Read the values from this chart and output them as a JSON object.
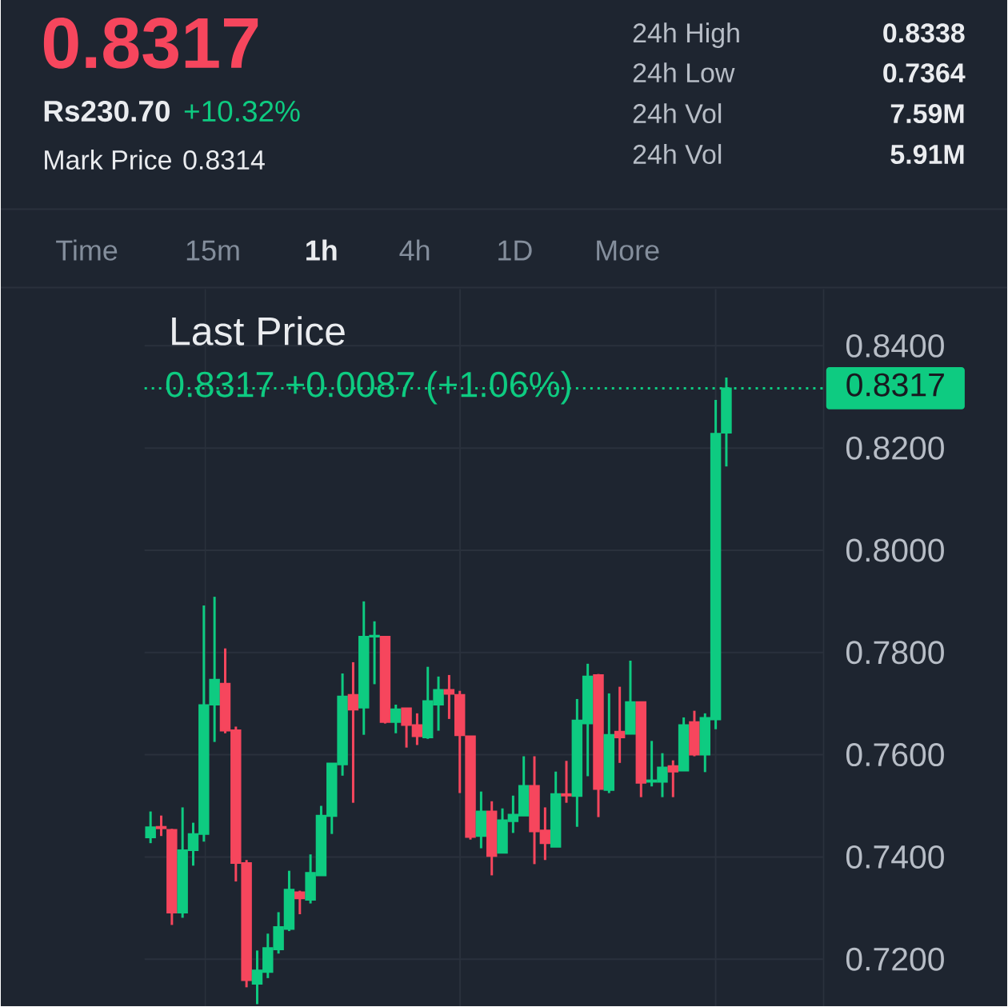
{
  "chart_data": {
    "type": "candlestick",
    "title": "Last Price",
    "subtitle": "0.8317 +0.0087 (+1.06%)",
    "annotations": [
      "0.8317",
      "Rs230.70",
      "+10.32%",
      "Mark Price",
      "0.8314",
      "24h High",
      "0.8338",
      "24h Low",
      "0.7364",
      "24h Vol",
      "7.59M",
      "24h Vol",
      "5.91M",
      "Time",
      "15m",
      "1h",
      "4h",
      "1D",
      "More"
    ],
    "categories": [
      null,
      null,
      null,
      null,
      null,
      null,
      null,
      null,
      null,
      null,
      null,
      null,
      null,
      null,
      null,
      null,
      null,
      null,
      null,
      null,
      null,
      null,
      null,
      null,
      null,
      null,
      null,
      null,
      null,
      null,
      null,
      null,
      null,
      null,
      null,
      null,
      null,
      null,
      null,
      null,
      null,
      null,
      null,
      null,
      null,
      null,
      null,
      null,
      null,
      null,
      null,
      null,
      null,
      null,
      null
    ],
    "ohlc": [
      [
        0.7438,
        0.7489,
        0.7427,
        0.7458
      ],
      [
        0.7459,
        0.7481,
        0.7441,
        0.7456
      ],
      [
        0.7453,
        0.7455,
        0.7267,
        0.7291
      ],
      [
        0.7291,
        0.7497,
        0.7281,
        0.7413
      ],
      [
        0.7413,
        0.7467,
        0.7383,
        0.7445
      ],
      [
        0.7445,
        0.7892,
        0.743,
        0.7697
      ],
      [
        0.7698,
        0.7909,
        0.7625,
        0.7747
      ],
      [
        0.7739,
        0.7808,
        0.7642,
        0.7647
      ],
      [
        0.7648,
        0.7655,
        0.7352,
        0.7388
      ],
      [
        0.7388,
        0.7394,
        0.7145,
        0.7159
      ],
      [
        0.7152,
        0.7217,
        0.7112,
        0.7178
      ],
      [
        0.7175,
        0.725,
        0.7163,
        0.7222
      ],
      [
        0.7219,
        0.7292,
        0.7211,
        0.7263
      ],
      [
        0.7259,
        0.7373,
        0.7255,
        0.7336
      ],
      [
        0.7331,
        0.7334,
        0.7288,
        0.7319
      ],
      [
        0.7316,
        0.7405,
        0.7309,
        0.7369
      ],
      [
        0.7364,
        0.75,
        0.7364,
        0.7481
      ],
      [
        0.748,
        0.7583,
        0.7445,
        0.7583
      ],
      [
        0.7581,
        0.7759,
        0.7559,
        0.7714
      ],
      [
        0.7717,
        0.7781,
        0.7506,
        0.7688
      ],
      [
        0.7692,
        0.79,
        0.7639,
        0.7831
      ],
      [
        0.7831,
        0.7861,
        0.7738,
        0.7833
      ],
      [
        0.7831,
        0.7831,
        0.7661,
        0.7664
      ],
      [
        0.7664,
        0.7698,
        0.7642,
        0.7689
      ],
      [
        0.7691,
        0.7691,
        0.7614,
        0.7658
      ],
      [
        0.7658,
        0.7681,
        0.7619,
        0.7636
      ],
      [
        0.7634,
        0.7772,
        0.7631,
        0.7705
      ],
      [
        0.7698,
        0.7753,
        0.7647,
        0.7727
      ],
      [
        0.7727,
        0.7756,
        0.767,
        0.7719
      ],
      [
        0.7717,
        0.7725,
        0.7525,
        0.7638
      ],
      [
        0.7636,
        0.7636,
        0.7434,
        0.7439
      ],
      [
        0.7441,
        0.7528,
        0.7417,
        0.7489
      ],
      [
        0.7489,
        0.7509,
        0.7364,
        0.7402
      ],
      [
        0.7408,
        0.7495,
        0.7408,
        0.7472
      ],
      [
        0.747,
        0.752,
        0.7447,
        0.7483
      ],
      [
        0.7481,
        0.7597,
        0.7481,
        0.7539
      ],
      [
        0.7539,
        0.7597,
        0.7386,
        0.745
      ],
      [
        0.7452,
        0.7497,
        0.7394,
        0.7427
      ],
      [
        0.742,
        0.7567,
        0.742,
        0.7523
      ],
      [
        0.7523,
        0.7588,
        0.7506,
        0.752
      ],
      [
        0.7519,
        0.7709,
        0.7459,
        0.7667
      ],
      [
        0.7661,
        0.7778,
        0.7558,
        0.7753
      ],
      [
        0.7756,
        0.7758,
        0.7478,
        0.7533
      ],
      [
        0.7531,
        0.772,
        0.7525,
        0.7639
      ],
      [
        0.7645,
        0.7733,
        0.7584,
        0.7634
      ],
      [
        0.7641,
        0.7784,
        0.7641,
        0.7703
      ],
      [
        0.7703,
        0.7703,
        0.7517,
        0.7545
      ],
      [
        0.7547,
        0.7627,
        0.7538,
        0.755
      ],
      [
        0.7547,
        0.7603,
        0.7517,
        0.7575
      ],
      [
        0.7578,
        0.7589,
        0.7517,
        0.7567
      ],
      [
        0.7569,
        0.7673,
        0.7569,
        0.7658
      ],
      [
        0.7664,
        0.7686,
        0.7597,
        0.76
      ],
      [
        0.76,
        0.7681,
        0.7566,
        0.7672
      ],
      [
        0.7669,
        0.8294,
        0.765,
        0.8228
      ],
      [
        0.823,
        0.8338,
        0.8164,
        0.8317
      ]
    ],
    "colors": [
      "#0ecb81",
      "#f6465d",
      "#f6465d",
      "#0ecb81",
      "#0ecb81",
      "#0ecb81",
      "#0ecb81",
      "#f6465d",
      "#f6465d",
      "#f6465d",
      "#0ecb81",
      "#0ecb81",
      "#0ecb81",
      "#0ecb81",
      "#f6465d",
      "#0ecb81",
      "#0ecb81",
      "#0ecb81",
      "#0ecb81",
      "#f6465d",
      "#0ecb81",
      "#0ecb81",
      "#f6465d",
      "#0ecb81",
      "#f6465d",
      "#f6465d",
      "#0ecb81",
      "#0ecb81",
      "#f6465d",
      "#f6465d",
      "#f6465d",
      "#0ecb81",
      "#f6465d",
      "#0ecb81",
      "#0ecb81",
      "#0ecb81",
      "#f6465d",
      "#f6465d",
      "#0ecb81",
      "#f6465d",
      "#0ecb81",
      "#0ecb81",
      "#f6465d",
      "#0ecb81",
      "#f6465d",
      "#0ecb81",
      "#f6465d",
      "#0ecb81",
      "#0ecb81",
      "#f6465d",
      "#0ecb81",
      "#f6465d",
      "#0ecb81",
      "#0ecb81",
      "#0ecb81"
    ],
    "ylim": [
      0.7108,
      0.8511
    ],
    "yticks": [
      {
        "value": 0.72,
        "label": "0.7200"
      },
      {
        "value": 0.74,
        "label": "0.7400"
      },
      {
        "value": 0.76,
        "label": "0.7600"
      },
      {
        "value": 0.78,
        "label": "0.7800"
      },
      {
        "value": 0.8,
        "label": "0.8000"
      },
      {
        "value": 0.82,
        "label": "0.8200"
      },
      {
        "value": 0.84,
        "label": "0.8400"
      }
    ],
    "grid": true,
    "tick_labels": "y",
    "ref_lines": [
      {
        "axis": "y",
        "value": 0.8317,
        "label": "0.8317",
        "color": "#0ecb81",
        "line_style": "dotted"
      }
    ]
  }
}
